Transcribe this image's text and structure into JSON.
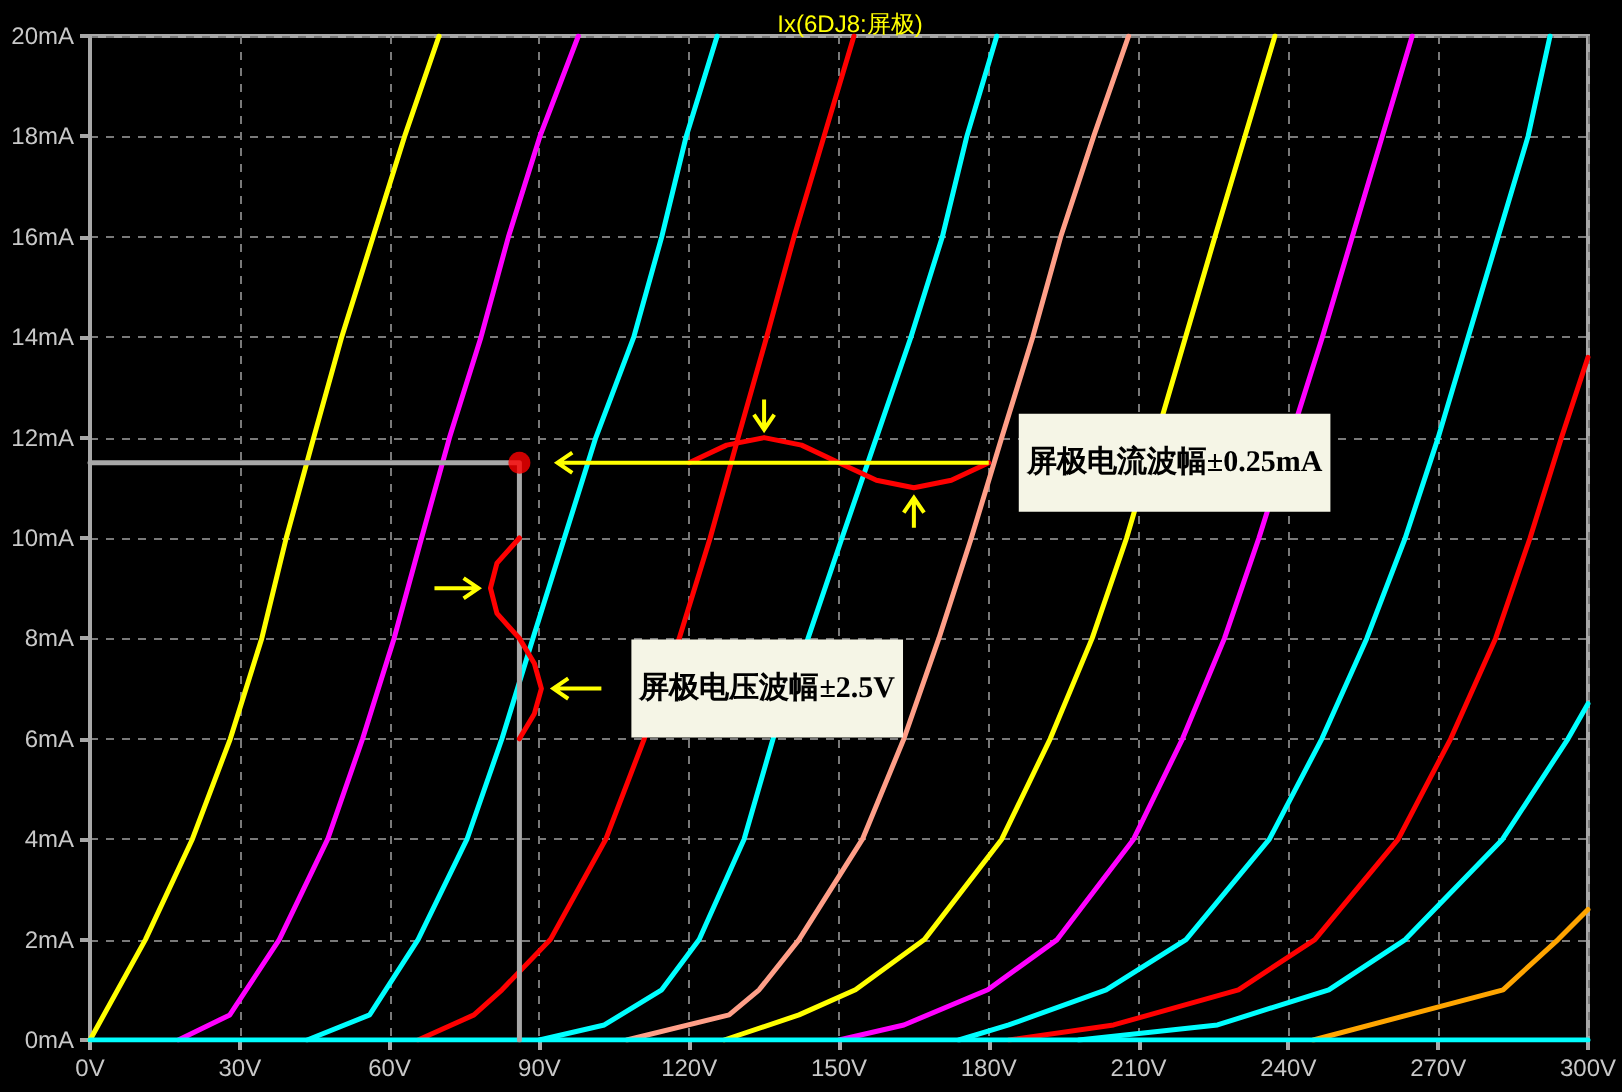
{
  "chart_data": {
    "type": "line",
    "title": "Ix(6DJ8:屏极)",
    "grid": true,
    "marker": "none",
    "line_style": "solid",
    "xlim": [
      0,
      300
    ],
    "ylim": [
      0,
      20
    ],
    "xticks": [
      {
        "value": 0,
        "label": "0V"
      },
      {
        "value": 30,
        "label": "30V"
      },
      {
        "value": 60,
        "label": "60V"
      },
      {
        "value": 90,
        "label": "90V"
      },
      {
        "value": 120,
        "label": "120V"
      },
      {
        "value": 150,
        "label": "150V"
      },
      {
        "value": 180,
        "label": "180V"
      },
      {
        "value": 210,
        "label": "210V"
      },
      {
        "value": 240,
        "label": "240V"
      },
      {
        "value": 270,
        "label": "270V"
      },
      {
        "value": 300,
        "label": "300V"
      }
    ],
    "yticks": [
      {
        "value": 0,
        "label": "0mA"
      },
      {
        "value": 2,
        "label": "2mA"
      },
      {
        "value": 4,
        "label": "4mA"
      },
      {
        "value": 6,
        "label": "6mA"
      },
      {
        "value": 8,
        "label": "8mA"
      },
      {
        "value": 10,
        "label": "10mA"
      },
      {
        "value": 12,
        "label": "12mA"
      },
      {
        "value": 14,
        "label": "14mA"
      },
      {
        "value": 16,
        "label": "16mA"
      },
      {
        "value": 18,
        "label": "18mA"
      },
      {
        "value": 20,
        "label": "20mA"
      }
    ],
    "annotations": [
      "屏极电流波幅±0.25mA",
      "屏极电压波幅±2.5V"
    ],
    "series": [
      {
        "color": "#ffff00",
        "x": [
          0,
          11.1,
          20.5,
          28.1,
          34.4,
          39.3,
          44.8,
          50.4,
          56.7,
          63,
          69.9
        ],
        "values": [
          0,
          2,
          4,
          6,
          8,
          10,
          12,
          14,
          16,
          18,
          20
        ]
      },
      {
        "color": "#ff00ff",
        "x": [
          17.7,
          28,
          37.9,
          47.6,
          54.6,
          60.9,
          66.4,
          72,
          78.3,
          83.8,
          90.1,
          97.8
        ],
        "values": [
          0,
          0.5,
          2,
          4,
          6,
          8,
          10,
          12,
          14,
          16,
          18,
          20
        ]
      },
      {
        "color": "#00ffff",
        "x": [
          43.5,
          56,
          65.7,
          75.5,
          82.5,
          88.7,
          95,
          101.3,
          108.9,
          114.5,
          119.4,
          125.6
        ],
        "values": [
          0,
          0.5,
          2,
          4,
          6,
          8,
          10,
          12,
          14,
          16,
          18,
          20
        ]
      },
      {
        "color": "#ff0000",
        "x": [
          65.7,
          76.9,
          82.5,
          92.2,
          103.3,
          111,
          118,
          124.2,
          129.8,
          135.5,
          141,
          147,
          153
        ],
        "values": [
          0,
          0.5,
          1,
          2,
          4,
          6,
          8,
          10,
          12,
          14,
          16,
          18,
          20
        ]
      },
      {
        "color": "#00ffff",
        "x": [
          90,
          103,
          114.5,
          122,
          131,
          136.8,
          143.8,
          150.6,
          157.5,
          164.4,
          170.7,
          175.6,
          181.6
        ],
        "values": [
          0,
          0.3,
          1,
          2,
          4,
          6,
          8,
          10,
          12,
          14,
          16,
          18,
          20
        ]
      },
      {
        "color": "#ff9f88",
        "x": [
          107.5,
          128,
          134,
          142,
          154.7,
          163,
          170,
          176.5,
          182.6,
          188.8,
          194.4,
          201,
          208
        ],
        "values": [
          0,
          0.5,
          1,
          2,
          4,
          6,
          8,
          10,
          12,
          14,
          16,
          18,
          20
        ]
      },
      {
        "color": "#ffff00",
        "x": [
          127,
          142,
          153.3,
          167.1,
          182.6,
          192.3,
          200.7,
          207.6,
          219.4,
          225.3,
          231.3,
          237.3
        ],
        "values": [
          0,
          0.5,
          1,
          2,
          4,
          6,
          8,
          10,
          14,
          16,
          18,
          20
        ]
      },
      {
        "color": "#ff00ff",
        "x": [
          150,
          163,
          179.8,
          193.7,
          209,
          218.8,
          227.2,
          234.1,
          246.8,
          252.8,
          258.8,
          264.8
        ],
        "values": [
          0,
          0.3,
          1,
          2,
          4,
          6,
          8,
          10,
          14,
          16,
          18,
          20
        ]
      },
      {
        "color": "#00ffff",
        "x": [
          174,
          184,
          203.5,
          219.5,
          236.2,
          246.7,
          255.7,
          263.4,
          270,
          276,
          282,
          288,
          292.4
        ],
        "values": [
          0,
          0.3,
          1,
          2,
          4,
          6,
          8,
          10,
          12,
          14,
          16,
          18,
          20
        ]
      },
      {
        "color": "#ff0000",
        "x": [
          184,
          205,
          230,
          245.3,
          262,
          272.5,
          281.5,
          288.4,
          294.7,
          300
        ],
        "values": [
          0,
          0.3,
          1,
          2,
          4,
          6,
          8,
          10,
          12,
          13.6
        ]
      },
      {
        "color": "#00ffff",
        "x": [
          198,
          225.8,
          248.1,
          263.4,
          282.9,
          296,
          300
        ],
        "values": [
          0,
          0.3,
          1,
          2,
          4,
          6,
          6.7
        ]
      },
      {
        "color": "#ffa500",
        "x": [
          245,
          283,
          294,
          300
        ],
        "values": [
          0,
          1,
          2,
          2.6
        ]
      },
      {
        "color": "#00ffff",
        "x": [
          0,
          300
        ],
        "values": [
          0,
          0
        ]
      },
      {
        "color": "#a8a8a8",
        "x": [
          0,
          86,
          86
        ],
        "values": [
          11.5,
          11.5,
          0
        ]
      },
      {
        "color": "#ff0000",
        "x": [
          120,
          127.5,
          135,
          142.5,
          150,
          157.5,
          165,
          172.5,
          180
        ],
        "values": [
          11.5,
          11.85,
          12,
          11.85,
          11.5,
          11.15,
          11,
          11.15,
          11.5
        ]
      },
      {
        "color": "#ff0000",
        "x": [
          86,
          81.5,
          80.2,
          81.5,
          86,
          89,
          90.4,
          89,
          86
        ],
        "values": [
          10,
          9.5,
          9,
          8.5,
          8,
          7.5,
          7,
          6.5,
          6
        ]
      },
      {
        "type": "scatter",
        "marker": "circle",
        "color": "#ff0000",
        "x": [
          86
        ],
        "values": [
          11.5
        ]
      }
    ]
  }
}
